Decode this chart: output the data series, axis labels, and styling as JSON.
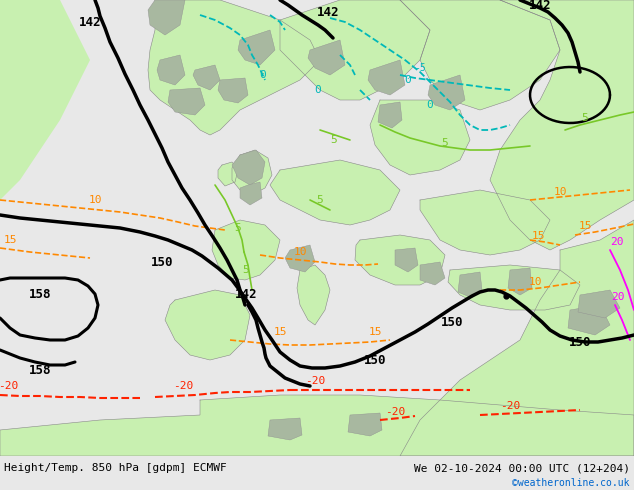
{
  "title_left": "Height/Temp. 850 hPa [gdpm] ECMWF",
  "title_right": "We 02-10-2024 00:00 UTC (12+204)",
  "credit": "©weatheronline.co.uk",
  "fig_width": 6.34,
  "fig_height": 4.9,
  "dpi": 100,
  "sea_color": "#d8d8d8",
  "land_green_light": "#c8f0b0",
  "land_green_mid": "#b0e890",
  "land_grey": "#a8b8a0",
  "land_white_gray": "#e0e8e0",
  "border_color": "#909090",
  "font_family": "DejaVu Sans",
  "color_black": "#000000",
  "color_cyan": "#00b8b8",
  "color_orange": "#ff8800",
  "color_red": "#ff2200",
  "color_green": "#78c828",
  "color_magenta": "#ff00ff",
  "color_blue": "#0066cc",
  "color_footer_bg": "#e8e8e8"
}
